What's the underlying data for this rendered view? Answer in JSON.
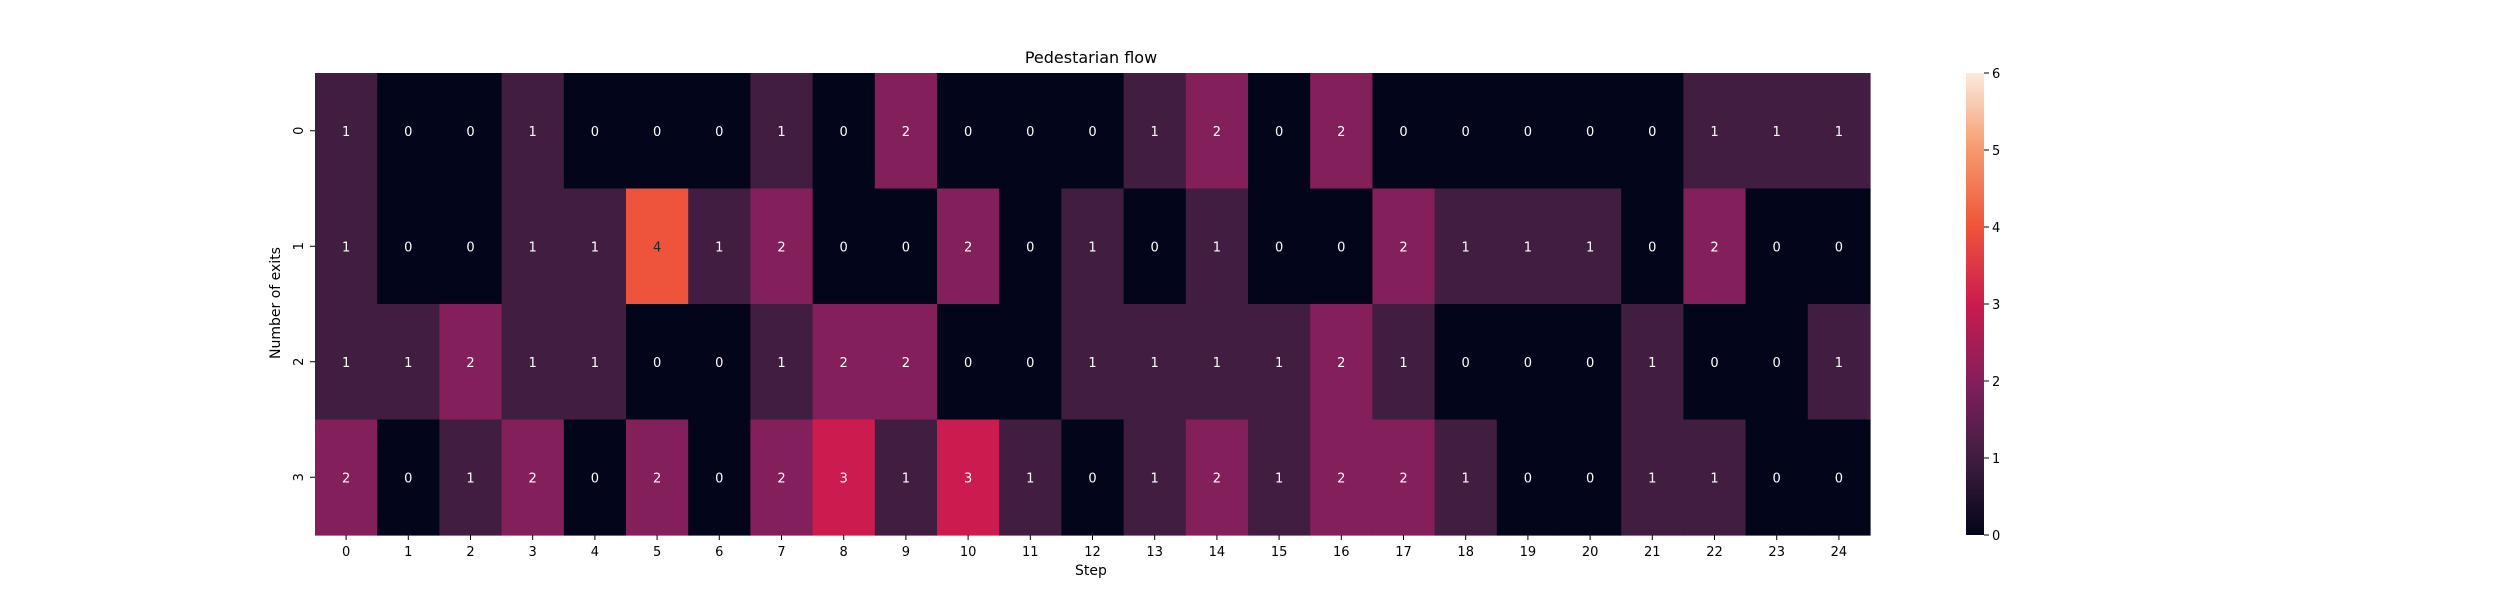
{
  "chart_data": {
    "type": "heatmap",
    "title": "Pedestarian flow",
    "xlabel": "Step",
    "ylabel": "Number of exits",
    "x_categories": [
      "0",
      "1",
      "2",
      "3",
      "4",
      "5",
      "6",
      "7",
      "8",
      "9",
      "10",
      "11",
      "12",
      "13",
      "14",
      "15",
      "16",
      "17",
      "18",
      "19",
      "20",
      "21",
      "22",
      "23",
      "24"
    ],
    "y_categories": [
      "0",
      "1",
      "2",
      "3"
    ],
    "values": [
      [
        1,
        0,
        0,
        1,
        0,
        0,
        0,
        1,
        0,
        2,
        0,
        0,
        0,
        1,
        2,
        0,
        2,
        0,
        0,
        0,
        0,
        0,
        1,
        1,
        1
      ],
      [
        1,
        0,
        0,
        1,
        1,
        4,
        1,
        2,
        0,
        0,
        2,
        0,
        1,
        0,
        1,
        0,
        0,
        2,
        1,
        1,
        1,
        0,
        2,
        0,
        0
      ],
      [
        1,
        1,
        2,
        1,
        1,
        0,
        0,
        1,
        2,
        2,
        0,
        0,
        1,
        1,
        1,
        1,
        2,
        1,
        0,
        0,
        0,
        1,
        0,
        0,
        1
      ],
      [
        2,
        0,
        1,
        2,
        0,
        2,
        0,
        2,
        3,
        1,
        3,
        1,
        0,
        1,
        2,
        1,
        2,
        2,
        1,
        0,
        0,
        1,
        1,
        0,
        0
      ]
    ],
    "colorbar": {
      "min": 0,
      "max": 6,
      "ticks": [
        "0",
        "1",
        "2",
        "3",
        "4",
        "5",
        "6"
      ]
    },
    "colormap": "rocket",
    "annotations": true
  }
}
